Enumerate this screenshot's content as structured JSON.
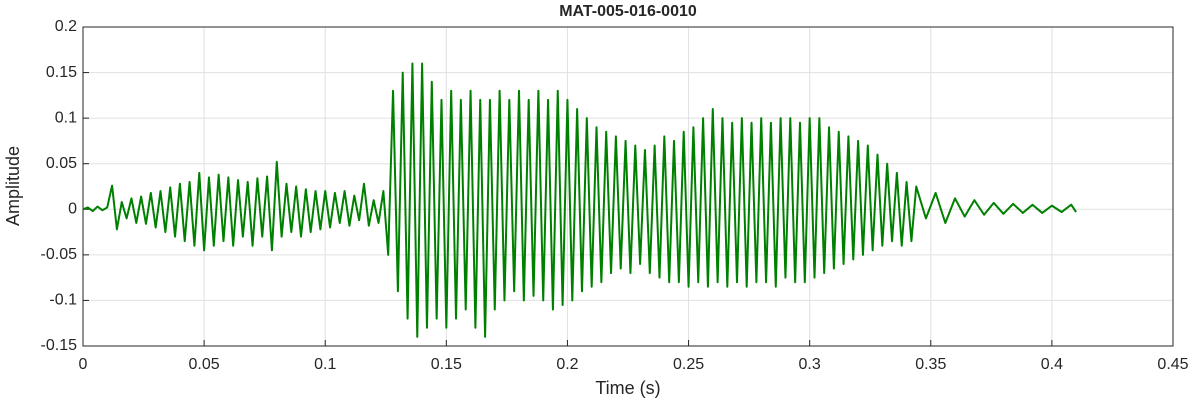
{
  "chart_data": {
    "type": "line",
    "title": "MAT-005-016-0010",
    "xlabel": "Time (s)",
    "ylabel": "Amplitude",
    "color": "#008000",
    "grid": true,
    "xlim": [
      0,
      0.45
    ],
    "xticks": [
      0,
      0.05,
      0.1,
      0.15,
      0.2,
      0.25,
      0.3,
      0.35,
      0.4,
      0.45
    ],
    "ylim": [
      -0.15,
      0.2
    ],
    "yticks": [
      -0.15,
      -0.1,
      -0.05,
      0,
      0.05,
      0.1,
      0.15,
      0.2
    ],
    "x": [
      0,
      0.002,
      0.004,
      0.006,
      0.008,
      0.01,
      0.012,
      0.014,
      0.016,
      0.018,
      0.02,
      0.022,
      0.024,
      0.026,
      0.028,
      0.03,
      0.032,
      0.034,
      0.036,
      0.038,
      0.04,
      0.042,
      0.044,
      0.046,
      0.048,
      0.05,
      0.052,
      0.054,
      0.056,
      0.058,
      0.06,
      0.062,
      0.064,
      0.066,
      0.068,
      0.07,
      0.072,
      0.074,
      0.076,
      0.078,
      0.08,
      0.082,
      0.084,
      0.086,
      0.088,
      0.09,
      0.092,
      0.094,
      0.096,
      0.098,
      0.1,
      0.102,
      0.104,
      0.106,
      0.108,
      0.11,
      0.112,
      0.114,
      0.116,
      0.118,
      0.12,
      0.122,
      0.124,
      0.126,
      0.128,
      0.13,
      0.132,
      0.134,
      0.136,
      0.138,
      0.14,
      0.142,
      0.144,
      0.146,
      0.148,
      0.15,
      0.152,
      0.154,
      0.156,
      0.158,
      0.16,
      0.162,
      0.164,
      0.166,
      0.168,
      0.17,
      0.172,
      0.174,
      0.176,
      0.178,
      0.18,
      0.182,
      0.184,
      0.186,
      0.188,
      0.19,
      0.192,
      0.194,
      0.196,
      0.198,
      0.2,
      0.202,
      0.204,
      0.206,
      0.208,
      0.21,
      0.212,
      0.214,
      0.216,
      0.218,
      0.22,
      0.222,
      0.224,
      0.226,
      0.228,
      0.23,
      0.232,
      0.234,
      0.236,
      0.238,
      0.24,
      0.242,
      0.244,
      0.246,
      0.248,
      0.25,
      0.252,
      0.254,
      0.256,
      0.258,
      0.26,
      0.262,
      0.264,
      0.266,
      0.268,
      0.27,
      0.272,
      0.274,
      0.276,
      0.278,
      0.28,
      0.282,
      0.284,
      0.286,
      0.288,
      0.29,
      0.292,
      0.294,
      0.296,
      0.298,
      0.3,
      0.302,
      0.304,
      0.306,
      0.308,
      0.31,
      0.312,
      0.314,
      0.316,
      0.318,
      0.32,
      0.322,
      0.324,
      0.326,
      0.328,
      0.33,
      0.332,
      0.334,
      0.336,
      0.338,
      0.34,
      0.342,
      0.344,
      0.348,
      0.352,
      0.356,
      0.36,
      0.364,
      0.368,
      0.372,
      0.376,
      0.38,
      0.384,
      0.388,
      0.392,
      0.396,
      0.4,
      0.404,
      0.408,
      0.41
    ],
    "values": [
      0,
      0.002,
      -0.002,
      0.003,
      -0.001,
      0.002,
      0.026,
      -0.022,
      0.008,
      -0.01,
      0.012,
      -0.015,
      0.014,
      -0.016,
      0.018,
      -0.02,
      0.02,
      -0.025,
      0.024,
      -0.03,
      0.028,
      -0.035,
      0.03,
      -0.04,
      0.04,
      -0.045,
      0.035,
      -0.04,
      0.038,
      -0.035,
      0.035,
      -0.04,
      0.032,
      -0.03,
      0.03,
      -0.04,
      0.034,
      -0.03,
      0.036,
      -0.045,
      0.052,
      -0.03,
      0.028,
      -0.025,
      0.025,
      -0.03,
      0.022,
      -0.025,
      0.02,
      -0.022,
      0.02,
      -0.02,
      0.018,
      -0.015,
      0.02,
      -0.018,
      0.015,
      -0.012,
      0.028,
      -0.018,
      0.01,
      -0.015,
      0.02,
      -0.05,
      0.13,
      -0.09,
      0.15,
      -0.12,
      0.16,
      -0.14,
      0.16,
      -0.13,
      0.14,
      -0.12,
      0.12,
      -0.13,
      0.13,
      -0.12,
      0.12,
      -0.11,
      0.13,
      -0.13,
      0.12,
      -0.14,
      0.12,
      -0.11,
      0.13,
      -0.1,
      0.12,
      -0.09,
      0.13,
      -0.1,
      0.12,
      -0.095,
      0.13,
      -0.1,
      0.12,
      -0.11,
      0.13,
      -0.105,
      0.12,
      -0.1,
      0.11,
      -0.09,
      0.1,
      -0.085,
      0.09,
      -0.08,
      0.085,
      -0.07,
      0.08,
      -0.065,
      0.075,
      -0.07,
      0.07,
      -0.06,
      0.065,
      -0.07,
      0.07,
      -0.075,
      0.08,
      -0.08,
      0.075,
      -0.08,
      0.085,
      -0.085,
      0.09,
      -0.08,
      0.1,
      -0.085,
      0.11,
      -0.08,
      0.1,
      -0.085,
      0.095,
      -0.08,
      0.1,
      -0.085,
      0.095,
      -0.08,
      0.1,
      -0.08,
      0.095,
      -0.085,
      0.1,
      -0.075,
      0.1,
      -0.08,
      0.095,
      -0.08,
      0.1,
      -0.075,
      0.1,
      -0.07,
      0.09,
      -0.065,
      0.085,
      -0.06,
      0.08,
      -0.055,
      0.075,
      -0.05,
      0.07,
      -0.045,
      0.06,
      -0.04,
      0.05,
      -0.035,
      0.04,
      -0.04,
      0.03,
      -0.035,
      0.025,
      -0.01,
      0.018,
      -0.015,
      0.012,
      -0.008,
      0.01,
      -0.006,
      0.007,
      -0.005,
      0.006,
      -0.004,
      0.005,
      -0.004,
      0.004,
      -0.003,
      0.005,
      -0.003
    ]
  }
}
